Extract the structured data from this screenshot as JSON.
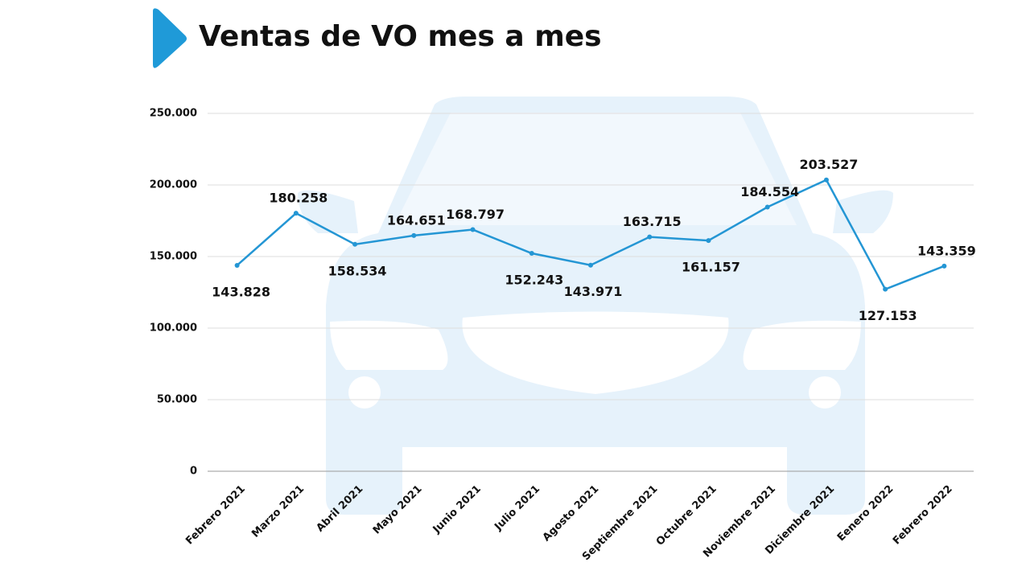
{
  "chart_data": {
    "type": "line",
    "title": "Ventas de VO mes a mes",
    "categories": [
      "Febrero 2021",
      "Marzo 2021",
      "Abril 2021",
      "Mayo 2021",
      "Junio 2021",
      "Julio 2021",
      "Agosto 2021",
      "Septiembre 2021",
      "Octubre 2021",
      "Noviembre 2021",
      "Diciembre 2021",
      "Eenero 2022",
      "Febrero 2022"
    ],
    "values": [
      143828,
      180258,
      158534,
      164651,
      168797,
      152243,
      143971,
      163715,
      161157,
      184554,
      203527,
      127153,
      143359
    ],
    "value_labels": [
      "143.828",
      "180.258",
      "158.534",
      "164.651",
      "168.797",
      "152.243",
      "143.971",
      "163.715",
      "161.157",
      "184.554",
      "203.527",
      "127.153",
      "143.359"
    ],
    "color": "#2496d4",
    "ylim": [
      0,
      250000
    ],
    "yticks": [
      0,
      {
        "value": 50000,
        "label": "50.000"
      },
      {
        "value": 100000,
        "label": "100.000"
      },
      {
        "value": 150000,
        "label": "150.000"
      },
      {
        "value": 200000,
        "label": "200.000"
      },
      {
        "value": 250000,
        "label": "250.000"
      }
    ],
    "grid": true
  }
}
